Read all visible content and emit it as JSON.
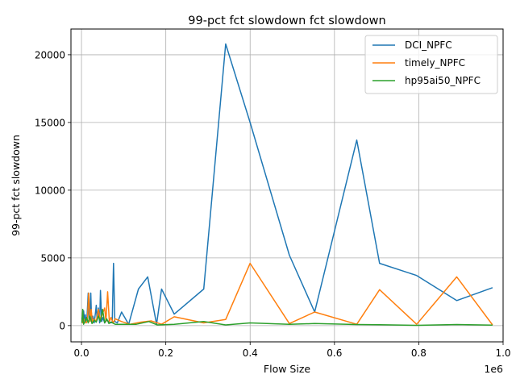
{
  "chart_data": {
    "type": "line",
    "title": "99-pct fct slowdown fct slowdown",
    "xlabel": "Flow Size",
    "ylabel": "99-pct fct slowdown",
    "x_offset_label": "1e6",
    "xlim": [
      -25000,
      1000000
    ],
    "ylim": [
      -1200,
      21900
    ],
    "x_ticks": [
      0,
      0.2,
      0.4,
      0.6,
      0.8,
      1.0
    ],
    "x_tick_labels": [
      "0.0",
      "0.2",
      "0.4",
      "0.6",
      "0.8",
      "1.0"
    ],
    "x_tick_values": [
      0,
      200000,
      400000,
      600000,
      800000,
      1000000
    ],
    "y_ticks": [
      0,
      5000,
      10000,
      15000,
      20000
    ],
    "y_tick_labels": [
      "0",
      "5000",
      "10000",
      "15000",
      "20000"
    ],
    "grid": true,
    "legend_position": "upper right",
    "series": [
      {
        "name": "DCI_NPFC",
        "color": "#1f77b4",
        "points": [
          [
            1000,
            600
          ],
          [
            2000,
            300
          ],
          [
            3000,
            900
          ],
          [
            5000,
            1100
          ],
          [
            7000,
            400
          ],
          [
            9000,
            800
          ],
          [
            11000,
            200
          ],
          [
            13000,
            600
          ],
          [
            16000,
            2400
          ],
          [
            18000,
            500
          ],
          [
            20000,
            900
          ],
          [
            22000,
            2400
          ],
          [
            24000,
            300
          ],
          [
            27000,
            700
          ],
          [
            30000,
            200
          ],
          [
            33000,
            900
          ],
          [
            35000,
            1500
          ],
          [
            37000,
            400
          ],
          [
            40000,
            1300
          ],
          [
            43000,
            200
          ],
          [
            45000,
            2600
          ],
          [
            48000,
            300
          ],
          [
            51000,
            600
          ],
          [
            55000,
            200
          ],
          [
            60000,
            400
          ],
          [
            65000,
            300
          ],
          [
            70000,
            200
          ],
          [
            73000,
            300
          ],
          [
            76000,
            4600
          ],
          [
            79000,
            300
          ],
          [
            85000,
            200
          ],
          [
            95000,
            1000
          ],
          [
            112000,
            100
          ],
          [
            135000,
            2700
          ],
          [
            157000,
            3600
          ],
          [
            178000,
            100
          ],
          [
            190000,
            2700
          ],
          [
            220000,
            850
          ],
          [
            290000,
            2700
          ],
          [
            342000,
            20800
          ],
          [
            400000,
            15000
          ],
          [
            493000,
            5200
          ],
          [
            553000,
            1000
          ],
          [
            653000,
            13700
          ],
          [
            707000,
            4600
          ],
          [
            795000,
            3700
          ],
          [
            890000,
            1850
          ],
          [
            975000,
            2800
          ]
        ]
      },
      {
        "name": "timely_NPFC",
        "color": "#ff7f0e",
        "points": [
          [
            1000,
            400
          ],
          [
            3000,
            200
          ],
          [
            5000,
            500
          ],
          [
            8000,
            300
          ],
          [
            11000,
            200
          ],
          [
            14000,
            400
          ],
          [
            17000,
            2400
          ],
          [
            20000,
            300
          ],
          [
            23000,
            1200
          ],
          [
            26000,
            200
          ],
          [
            30000,
            500
          ],
          [
            35000,
            300
          ],
          [
            40000,
            1200
          ],
          [
            45000,
            400
          ],
          [
            50000,
            900
          ],
          [
            55000,
            1300
          ],
          [
            58000,
            300
          ],
          [
            62000,
            2500
          ],
          [
            66000,
            300
          ],
          [
            70000,
            600
          ],
          [
            75000,
            200
          ],
          [
            80000,
            500
          ],
          [
            95000,
            300
          ],
          [
            115000,
            100
          ],
          [
            140000,
            250
          ],
          [
            165000,
            350
          ],
          [
            190000,
            100
          ],
          [
            220000,
            650
          ],
          [
            290000,
            200
          ],
          [
            342000,
            450
          ],
          [
            400000,
            4600
          ],
          [
            493000,
            150
          ],
          [
            553000,
            1000
          ],
          [
            653000,
            100
          ],
          [
            707000,
            2650
          ],
          [
            795000,
            100
          ],
          [
            890000,
            3600
          ],
          [
            975000,
            50
          ]
        ]
      },
      {
        "name": "hp95ai50_NPFC",
        "color": "#2ca02c",
        "points": [
          [
            1000,
            200
          ],
          [
            3000,
            1200
          ],
          [
            5000,
            100
          ],
          [
            8000,
            300
          ],
          [
            12000,
            600
          ],
          [
            16000,
            200
          ],
          [
            20000,
            700
          ],
          [
            25000,
            150
          ],
          [
            30000,
            400
          ],
          [
            35000,
            250
          ],
          [
            40000,
            700
          ],
          [
            45000,
            300
          ],
          [
            50000,
            1200
          ],
          [
            55000,
            200
          ],
          [
            60000,
            500
          ],
          [
            65000,
            150
          ],
          [
            70000,
            250
          ],
          [
            80000,
            100
          ],
          [
            95000,
            100
          ],
          [
            130000,
            100
          ],
          [
            160000,
            300
          ],
          [
            180000,
            50
          ],
          [
            220000,
            100
          ],
          [
            290000,
            300
          ],
          [
            342000,
            50
          ],
          [
            400000,
            200
          ],
          [
            493000,
            100
          ],
          [
            553000,
            150
          ],
          [
            653000,
            80
          ],
          [
            707000,
            70
          ],
          [
            795000,
            20
          ],
          [
            890000,
            80
          ],
          [
            975000,
            30
          ]
        ]
      }
    ]
  }
}
